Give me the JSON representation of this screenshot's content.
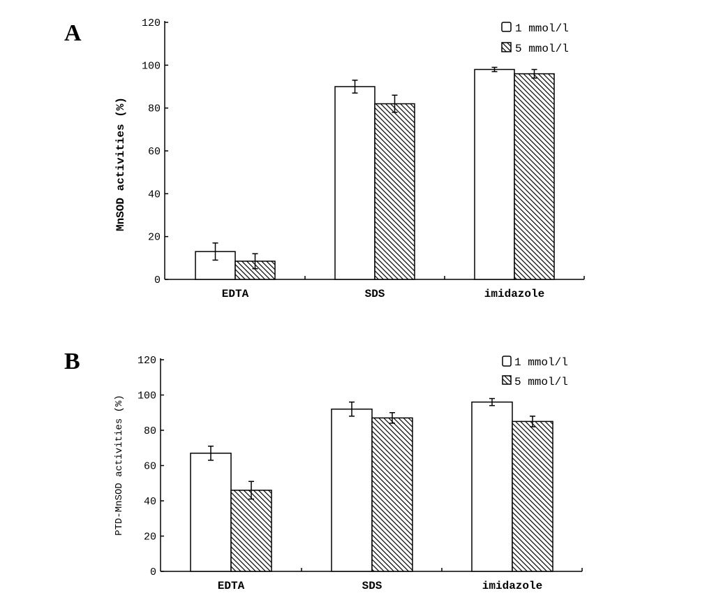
{
  "chart_data": [
    {
      "panel_label": "A",
      "type": "bar",
      "title": "",
      "xlabel": "",
      "ylabel": "MnSOD activities (%)",
      "ylim": [
        0,
        120
      ],
      "yticks": [
        "0",
        "20",
        "40",
        "60",
        "80",
        "100",
        "120"
      ],
      "categories": [
        "EDTA",
        "SDS",
        "imidazole"
      ],
      "legend_position": "top-right",
      "series": [
        {
          "name": "1 mmol/l",
          "fill": "white",
          "values": [
            13,
            90,
            98
          ],
          "errors": [
            4,
            3,
            1
          ]
        },
        {
          "name": "5 mmol/l",
          "fill": "hatched",
          "values": [
            8.5,
            82,
            96
          ],
          "errors": [
            3.5,
            4,
            2
          ]
        }
      ]
    },
    {
      "panel_label": "B",
      "type": "bar",
      "title": "",
      "xlabel": "",
      "ylabel": "PTD-MnSOD activities (%)",
      "ylim": [
        0,
        120
      ],
      "yticks": [
        "0",
        "20",
        "40",
        "60",
        "80",
        "100",
        "120"
      ],
      "categories": [
        "EDTA",
        "SDS",
        "imidazole"
      ],
      "legend_position": "top-right",
      "series": [
        {
          "name": "1 mmol/l",
          "fill": "white",
          "values": [
            67,
            92,
            96
          ],
          "errors": [
            4,
            4,
            2
          ]
        },
        {
          "name": "5 mmol/l",
          "fill": "hatched",
          "values": [
            46,
            87,
            85
          ],
          "errors": [
            5,
            3,
            3
          ]
        }
      ]
    }
  ]
}
